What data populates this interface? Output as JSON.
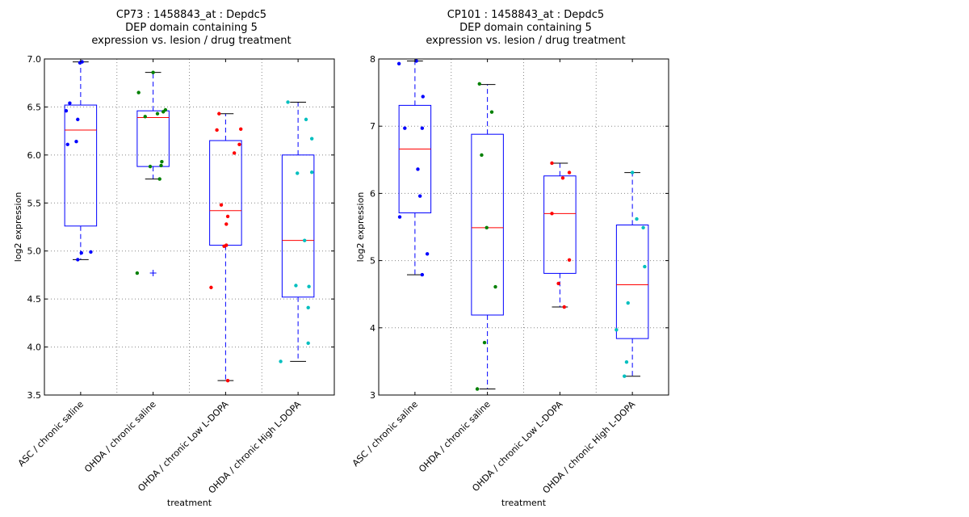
{
  "chart_data": [
    {
      "type": "boxplot",
      "title_lines": [
        "CP73 : 1458843_at : Depdc5",
        "DEP domain containing 5",
        "expression vs. lesion / drug treatment"
      ],
      "xlabel": "treatment",
      "ylabel": "log2 expression",
      "ylim": [
        3.5,
        7.0
      ],
      "yticks": [
        3.5,
        4.0,
        4.5,
        5.0,
        5.5,
        6.0,
        6.5,
        7.0
      ],
      "ytick_labels": [
        "3.5",
        "4.0",
        "4.5",
        "5.0",
        "5.5",
        "6.0",
        "6.5",
        "7.0"
      ],
      "grid": true,
      "categories": [
        "ASC / chronic saline",
        "OHDA / chronic saline",
        "OHDA / chronic Low L-DOPA",
        "OHDA / chronic High L-DOPA"
      ],
      "boxes": [
        {
          "q1": 5.26,
          "median": 6.26,
          "q3": 6.52,
          "whisker_low": 4.91,
          "whisker_high": 6.97,
          "outliers": []
        },
        {
          "q1": 5.88,
          "median": 6.39,
          "q3": 6.46,
          "whisker_low": 5.75,
          "whisker_high": 6.86,
          "outliers": [
            4.77
          ]
        },
        {
          "q1": 5.06,
          "median": 5.42,
          "q3": 6.15,
          "whisker_low": 3.65,
          "whisker_high": 6.43,
          "outliers": []
        },
        {
          "q1": 4.52,
          "median": 5.11,
          "q3": 6.0,
          "whisker_low": 3.85,
          "whisker_high": 6.55,
          "outliers": []
        }
      ],
      "points": [
        {
          "color": "#0000ff",
          "values": [
            6.97,
            6.96,
            6.54,
            6.46,
            6.37,
            6.14,
            6.11,
            4.99,
            4.98,
            4.91
          ],
          "jitter": [
            0.02,
            -0.01,
            -0.15,
            -0.2,
            -0.04,
            -0.06,
            -0.18,
            0.14,
            0.01,
            -0.04
          ]
        },
        {
          "color": "#008000",
          "values": [
            6.86,
            6.65,
            6.47,
            6.45,
            6.43,
            6.4,
            5.93,
            5.89,
            5.88,
            5.75,
            4.77
          ],
          "jitter": [
            0.0,
            -0.2,
            0.17,
            0.14,
            0.06,
            -0.11,
            0.12,
            0.11,
            -0.04,
            0.09,
            -0.22
          ]
        },
        {
          "color": "#ff0000",
          "values": [
            6.43,
            6.27,
            6.26,
            6.11,
            6.02,
            5.48,
            5.36,
            5.28,
            5.06,
            5.05,
            4.62,
            3.65
          ],
          "jitter": [
            -0.09,
            0.21,
            -0.12,
            0.19,
            0.12,
            -0.06,
            0.03,
            0.01,
            0.01,
            -0.02,
            -0.2,
            0.03
          ]
        },
        {
          "color": "#00bfbf",
          "values": [
            6.55,
            6.37,
            6.17,
            5.82,
            5.81,
            5.11,
            4.64,
            4.63,
            4.41,
            4.04,
            3.85
          ],
          "jitter": [
            -0.14,
            0.11,
            0.19,
            0.19,
            -0.01,
            0.09,
            -0.03,
            0.15,
            0.14,
            0.14,
            -0.24
          ]
        }
      ]
    },
    {
      "type": "boxplot",
      "title_lines": [
        "CP101 : 1458843_at : Depdc5",
        "DEP domain containing 5",
        "expression vs. lesion / drug treatment"
      ],
      "xlabel": "treatment",
      "ylabel": "log2 expression",
      "ylim": [
        3,
        8
      ],
      "yticks": [
        3,
        4,
        5,
        6,
        7,
        8
      ],
      "ytick_labels": [
        "3",
        "4",
        "5",
        "6",
        "7",
        "8"
      ],
      "grid": true,
      "categories": [
        "ASC / chronic saline",
        "OHDA / chronic saline",
        "OHDA / chronic Low L-DOPA",
        "OHDA / chronic High L-DOPA"
      ],
      "boxes": [
        {
          "q1": 5.71,
          "median": 6.66,
          "q3": 7.31,
          "whisker_low": 4.79,
          "whisker_high": 7.97,
          "outliers": []
        },
        {
          "q1": 4.19,
          "median": 5.49,
          "q3": 6.88,
          "whisker_low": 3.09,
          "whisker_high": 7.62,
          "outliers": []
        },
        {
          "q1": 4.81,
          "median": 5.7,
          "q3": 6.26,
          "whisker_low": 4.31,
          "whisker_high": 6.45,
          "outliers": []
        },
        {
          "q1": 3.84,
          "median": 4.64,
          "q3": 5.53,
          "whisker_low": 3.28,
          "whisker_high": 6.31,
          "outliers": []
        }
      ],
      "points": [
        {
          "color": "#0000ff",
          "values": [
            7.97,
            7.93,
            7.44,
            6.97,
            6.97,
            6.36,
            5.96,
            5.65,
            5.1,
            4.79
          ],
          "jitter": [
            0.02,
            -0.22,
            0.11,
            -0.14,
            0.1,
            0.04,
            0.07,
            -0.21,
            0.17,
            0.1
          ]
        },
        {
          "color": "#008000",
          "values": [
            7.63,
            7.21,
            6.57,
            5.49,
            4.61,
            3.78,
            3.09
          ],
          "jitter": [
            -0.11,
            0.06,
            -0.08,
            -0.01,
            0.11,
            -0.04,
            -0.14
          ]
        },
        {
          "color": "#ff0000",
          "values": [
            6.45,
            6.31,
            6.23,
            5.7,
            5.01,
            4.66,
            4.31
          ],
          "jitter": [
            -0.11,
            0.13,
            0.04,
            -0.11,
            0.13,
            -0.02,
            0.06
          ]
        },
        {
          "color": "#00bfbf",
          "values": [
            6.31,
            5.62,
            5.49,
            4.91,
            4.37,
            3.97,
            3.49,
            3.28
          ],
          "jitter": [
            0.0,
            0.06,
            0.15,
            0.17,
            -0.06,
            -0.22,
            -0.08,
            -0.11
          ]
        }
      ]
    }
  ]
}
